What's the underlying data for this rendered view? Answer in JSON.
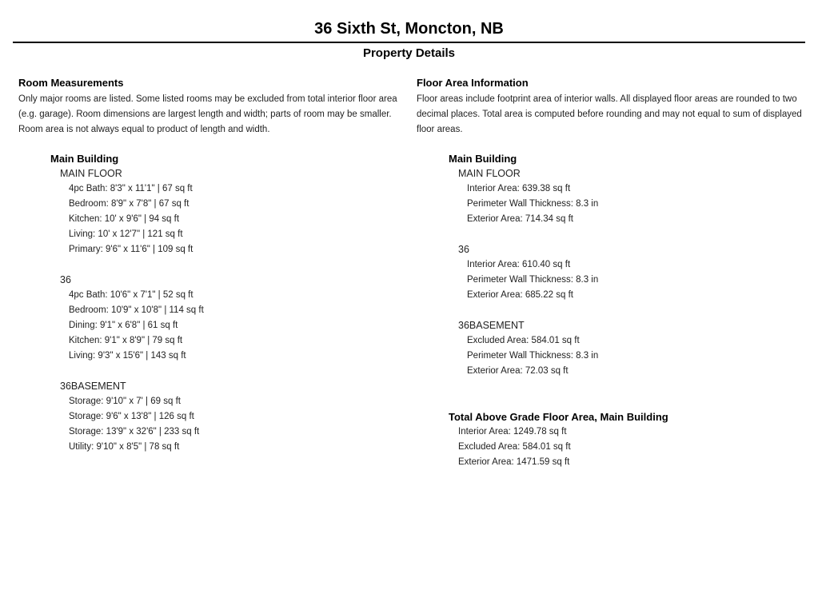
{
  "header": {
    "title": "36 Sixth St, Moncton, NB",
    "subtitle": "Property Details"
  },
  "room_measurements": {
    "heading": "Room Measurements",
    "description": "Only major rooms are listed. Some listed rooms may be excluded from total interior floor area (e.g. garage). Room dimensions are largest length and width; parts of room may be smaller. Room area is not always equal to product of length and width.",
    "building": {
      "name": "Main Building",
      "floors": [
        {
          "name": "MAIN FLOOR",
          "rooms": [
            "4pc Bath: 8'3\" x 11'1\" | 67 sq ft",
            "Bedroom: 8'9\" x 7'8\" | 67 sq ft",
            "Kitchen: 10' x 9'6\" | 94 sq ft",
            "Living: 10' x 12'7\" | 121 sq ft",
            "Primary: 9'6\" x 11'6\" | 109 sq ft"
          ]
        },
        {
          "name": "36",
          "rooms": [
            "4pc Bath: 10'6\" x 7'1\" | 52 sq ft",
            "Bedroom: 10'9\" x 10'8\" | 114 sq ft",
            "Dining: 9'1\" x 6'8\" | 61 sq ft",
            "Kitchen: 9'1\" x 8'9\" | 79 sq ft",
            "Living: 9'3\" x 15'6\" | 143 sq ft"
          ]
        },
        {
          "name": "36BASEMENT",
          "rooms": [
            "Storage: 9'10\" x 7' | 69 sq ft",
            "Storage: 9'6\" x 13'8\" | 126 sq ft",
            "Storage: 13'9\" x 32'6\" | 233 sq ft",
            "Utility: 9'10\" x 8'5\" | 78 sq ft"
          ]
        }
      ]
    }
  },
  "floor_area_information": {
    "heading": "Floor Area Information",
    "description": "Floor areas include footprint area of interior walls. All displayed floor areas are rounded to two decimal places. Total area is computed before rounding and may not equal to sum of displayed floor areas.",
    "building": {
      "name": "Main Building",
      "floors": [
        {
          "name": "MAIN FLOOR",
          "items": [
            "Interior Area: 639.38 sq ft",
            "Perimeter Wall Thickness: 8.3 in",
            "Exterior Area: 714.34 sq ft"
          ]
        },
        {
          "name": "36",
          "items": [
            "Interior Area: 610.40 sq ft",
            "Perimeter Wall Thickness: 8.3 in",
            "Exterior Area: 685.22 sq ft"
          ]
        },
        {
          "name": "36BASEMENT",
          "items": [
            "Excluded Area: 584.01 sq ft",
            "Perimeter Wall Thickness: 8.3 in",
            "Exterior Area: 72.03 sq ft"
          ]
        }
      ]
    },
    "total": {
      "heading": "Total Above Grade Floor Area, Main Building",
      "items": [
        "Interior Area: 1249.78 sq ft",
        "Excluded Area: 584.01 sq ft",
        "Exterior Area: 1471.59 sq ft"
      ]
    }
  }
}
